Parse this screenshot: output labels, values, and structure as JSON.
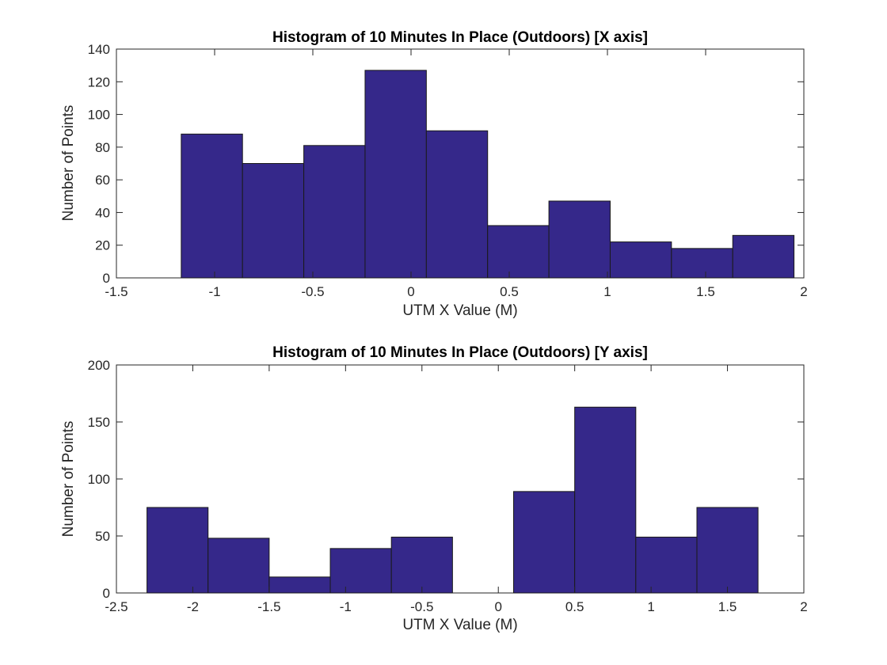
{
  "figure": {
    "bar_color": "#35288a"
  },
  "chart_data": [
    {
      "type": "bar",
      "title": "Histogram of 10 Minutes In Place (Outdoors) [X axis]",
      "xlabel": "UTM X Value (M)",
      "ylabel": "Number of Points",
      "xlim": [
        -1.5,
        2
      ],
      "ylim": [
        0,
        140
      ],
      "xticks": [
        -1.5,
        -1,
        -0.5,
        0,
        0.5,
        1,
        1.5,
        2
      ],
      "xtick_labels": [
        "-1.5",
        "-1",
        "-0.5",
        "0",
        "0.5",
        "1",
        "1.5",
        "2"
      ],
      "yticks": [
        0,
        20,
        40,
        60,
        80,
        100,
        120,
        140
      ],
      "ytick_labels": [
        "0",
        "20",
        "40",
        "60",
        "80",
        "100",
        "120",
        "140"
      ],
      "grid": false,
      "legend": "none",
      "bin_edges": [
        -1.17,
        -0.858,
        -0.546,
        -0.234,
        0.078,
        0.39,
        0.702,
        1.014,
        1.326,
        1.638,
        1.95
      ],
      "values": [
        88,
        70,
        81,
        127,
        90,
        32,
        47,
        22,
        18,
        26
      ]
    },
    {
      "type": "bar",
      "title": "Histogram of 10 Minutes In Place (Outdoors) [Y axis]",
      "xlabel": "UTM X Value (M)",
      "ylabel": "Number of Points",
      "xlim": [
        -2.5,
        2
      ],
      "ylim": [
        0,
        200
      ],
      "xticks": [
        -2.5,
        -2,
        -1.5,
        -1,
        -0.5,
        0,
        0.5,
        1,
        1.5,
        2
      ],
      "xtick_labels": [
        "-2.5",
        "-2",
        "-1.5",
        "-1",
        "-0.5",
        "0",
        "0.5",
        "1",
        "1.5",
        "2"
      ],
      "yticks": [
        0,
        50,
        100,
        150,
        200
      ],
      "ytick_labels": [
        "0",
        "50",
        "100",
        "150",
        "200"
      ],
      "grid": false,
      "legend": "none",
      "bin_edges": [
        -2.3,
        -1.9,
        -1.5,
        -1.1,
        -0.7,
        -0.3,
        0.1,
        0.5,
        0.9,
        1.3,
        1.7
      ],
      "values": [
        75,
        48,
        14,
        39,
        49,
        0,
        89,
        163,
        49,
        75
      ]
    }
  ]
}
